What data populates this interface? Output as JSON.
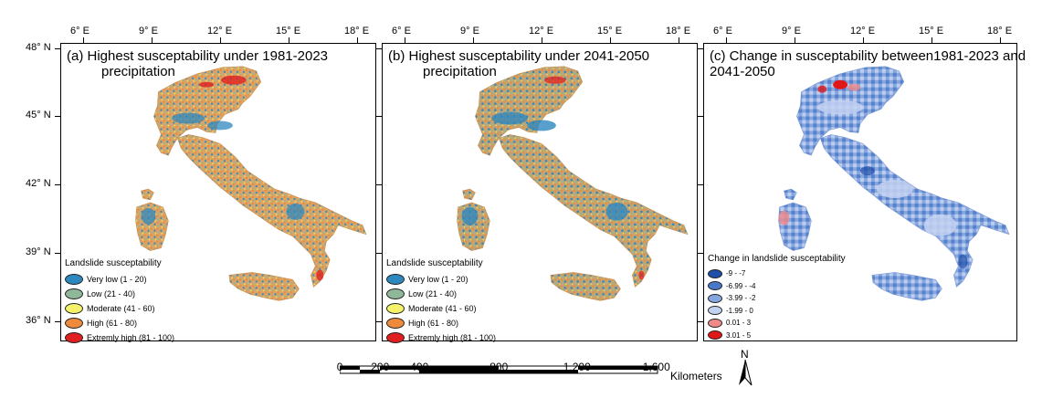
{
  "top_axis_labels": [
    "6° E",
    "9° E",
    "12° E",
    "15° E",
    "18° E"
  ],
  "left_axis_labels": [
    "48° N",
    "45° N",
    "42° N",
    "39° N",
    "36° N"
  ],
  "panels": [
    {
      "title_line1": "(a) Highest susceptability under 1981-2023",
      "title_line2": "precipitation",
      "legend_title": "Landslide susceptability",
      "legend": [
        {
          "label": "Very low (1 - 20)",
          "color": "#2e88c0"
        },
        {
          "label": "Low (21 - 40)",
          "color": "#8fb89a"
        },
        {
          "label": "Moderate (41 - 60)",
          "color": "#f4f26a"
        },
        {
          "label": "High (61 - 80)",
          "color": "#ee8a3c"
        },
        {
          "label": "Extremly high (81 - 100)",
          "color": "#e02020"
        }
      ]
    },
    {
      "title_line1": "(b) Highest susceptability under 2041-2050",
      "title_line2": "precipitation",
      "legend_title": "Landslide susceptability",
      "legend": [
        {
          "label": "Very low (1 - 20)",
          "color": "#2e88c0"
        },
        {
          "label": "Low (21 - 40)",
          "color": "#8fb89a"
        },
        {
          "label": "Moderate (41 - 60)",
          "color": "#f4f26a"
        },
        {
          "label": "High (61 - 80)",
          "color": "#ee8a3c"
        },
        {
          "label": "Extremly high (81 - 100)",
          "color": "#e02020"
        }
      ]
    },
    {
      "title_line1": "(c) Change in susceptability between1981-2023 and",
      "title_line2": "2041-2050",
      "legend_title": "Change in landslide susceptability",
      "legend": [
        {
          "label": "-9 - -7",
          "color": "#1f4fa8"
        },
        {
          "label": "-6.99 - -4",
          "color": "#4a78c8"
        },
        {
          "label": "-3.99 - -2",
          "color": "#86a6de"
        },
        {
          "label": "-1.99 - 0",
          "color": "#c4d2f2"
        },
        {
          "label": "0.01 - 3",
          "color": "#f08a8a"
        },
        {
          "label": "3.01 - 5",
          "color": "#e01818"
        }
      ]
    }
  ],
  "scale": {
    "labels": [
      "0",
      "200",
      "400",
      "800",
      "1,200",
      "1,600"
    ],
    "unit": "Kilometers"
  },
  "north_label": "N"
}
